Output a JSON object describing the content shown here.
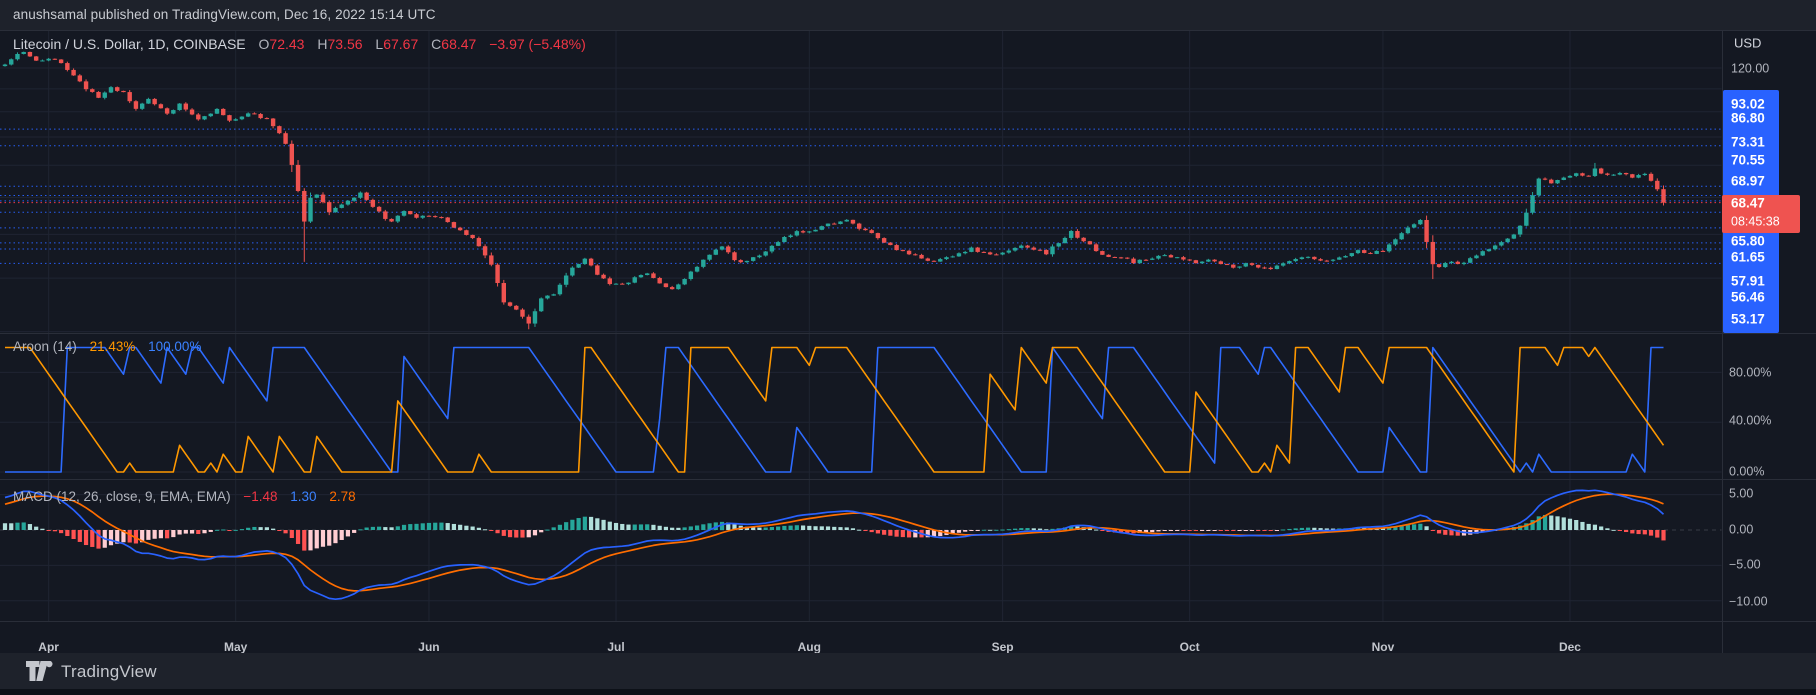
{
  "header": {
    "published_line": "anushsamal published on TradingView.com, Dec 16, 2022 15:14 UTC"
  },
  "watermark": {
    "brand": "TradingView"
  },
  "price_pane": {
    "legend": {
      "title": "Litecoin / U.S. Dollar, 1D, COINBASE",
      "o_label": "O",
      "o_value": "72.43",
      "h_label": "H",
      "h_value": "73.56",
      "l_label": "L",
      "l_value": "67.67",
      "c_label": "C",
      "c_value": "68.47",
      "change": "−3.97 (−5.48%)"
    },
    "axis": {
      "currency": "USD",
      "top_tick": "120.00",
      "level_labels_upper": [
        "93.02",
        "86.80",
        "73.31",
        "70.55",
        "68.97"
      ],
      "level_labels_lower": [
        "65.80",
        "61.65",
        "57.91",
        "56.46",
        "53.17"
      ],
      "current_price": "68.47",
      "countdown": "08:45:38"
    }
  },
  "aroon_pane": {
    "legend": {
      "name": "Aroon (14)",
      "up_value": "21.43%",
      "down_value": "100.00%"
    },
    "axis_ticks": [
      "80.00%",
      "40.00%",
      "0.00%"
    ]
  },
  "macd_pane": {
    "legend": {
      "name": "MACD (12, 26, close, 9, EMA, EMA)",
      "hist_value": "−1.48",
      "macd_value": "1.30",
      "signal_value": "2.78"
    },
    "axis_ticks": [
      "5.00",
      "0.00",
      "−5.00",
      "−10.00"
    ]
  },
  "time_axis": {
    "months": [
      "Apr",
      "May",
      "Jun",
      "Jul",
      "Aug",
      "Sep",
      "Oct",
      "Nov",
      "Dec"
    ],
    "month_start_indices": [
      7,
      37,
      68,
      98,
      129,
      160,
      190,
      221,
      251
    ]
  },
  "chart_data": {
    "type": "candlestick",
    "symbol": "Litecoin / U.S. Dollar",
    "interval": "1D",
    "exchange": "COINBASE",
    "seed": 1337,
    "start_index": -14,
    "end_index": 266,
    "last_candle": {
      "open": 72.43,
      "high": 73.56,
      "low": 67.67,
      "close": 68.47
    },
    "current_price": 68.47,
    "level_lines": [
      93.02,
      86.8,
      73.31,
      70.55,
      68.97,
      65.8,
      61.65,
      57.91,
      56.46,
      53.17
    ],
    "price_grid": [
      120,
      110,
      100,
      90,
      80,
      70,
      60,
      50,
      40
    ],
    "aroon_grid": [
      80,
      40,
      0
    ],
    "macd_grid": [
      5,
      0,
      -5,
      -10
    ],
    "indicators": {
      "aroon_period": 14,
      "macd_fast": 12,
      "macd_slow": 26,
      "macd_signal": 9
    },
    "keypoints": [
      [
        -14,
        104
      ],
      [
        -10,
        112
      ],
      [
        -6,
        118
      ],
      [
        -3,
        121
      ],
      [
        0,
        122
      ],
      [
        3,
        129
      ],
      [
        5,
        124
      ],
      [
        8,
        125
      ],
      [
        11,
        116
      ],
      [
        13,
        110
      ],
      [
        15,
        106
      ],
      [
        17,
        111
      ],
      [
        19,
        108
      ],
      [
        21,
        101
      ],
      [
        23,
        106
      ],
      [
        26,
        99
      ],
      [
        28,
        103
      ],
      [
        31,
        97
      ],
      [
        34,
        101
      ],
      [
        36,
        96
      ],
      [
        39,
        99.5
      ],
      [
        42,
        97
      ],
      [
        44,
        91
      ],
      [
        45,
        88
      ],
      [
        46,
        80
      ],
      [
        47,
        72
      ],
      [
        48,
        63
      ],
      [
        49,
        70
      ],
      [
        50,
        71
      ],
      [
        52,
        66
      ],
      [
        55,
        69
      ],
      [
        57,
        71
      ],
      [
        59,
        67
      ],
      [
        62,
        63
      ],
      [
        64,
        66
      ],
      [
        66,
        64
      ],
      [
        68,
        65
      ],
      [
        70,
        64
      ],
      [
        73,
        61
      ],
      [
        75,
        59
      ],
      [
        78,
        53
      ],
      [
        80,
        45
      ],
      [
        82,
        44
      ],
      [
        84,
        41.5
      ],
      [
        86,
        46
      ],
      [
        88,
        47
      ],
      [
        91,
        52
      ],
      [
        93,
        54
      ],
      [
        95,
        51
      ],
      [
        97,
        49
      ],
      [
        99,
        48.5
      ],
      [
        101,
        50
      ],
      [
        103,
        51
      ],
      [
        105,
        49
      ],
      [
        107,
        47.5
      ],
      [
        109,
        50
      ],
      [
        111,
        52.5
      ],
      [
        113,
        55
      ],
      [
        115,
        57
      ],
      [
        117,
        54
      ],
      [
        119,
        53.5
      ],
      [
        121,
        55
      ],
      [
        123,
        57
      ],
      [
        125,
        59
      ],
      [
        127,
        60.5
      ],
      [
        129,
        61
      ],
      [
        131,
        62
      ],
      [
        133,
        63
      ],
      [
        135,
        63.5
      ],
      [
        137,
        61.5
      ],
      [
        139,
        60
      ],
      [
        141,
        58
      ],
      [
        143,
        56.5
      ],
      [
        145,
        55
      ],
      [
        147,
        54.5
      ],
      [
        149,
        53.5
      ],
      [
        151,
        54.5
      ],
      [
        153,
        55.5
      ],
      [
        155,
        56.5
      ],
      [
        157,
        55.5
      ],
      [
        159,
        55
      ],
      [
        161,
        56
      ],
      [
        163,
        57.5
      ],
      [
        165,
        56.5
      ],
      [
        167,
        55.5
      ],
      [
        169,
        58
      ],
      [
        171,
        60.5
      ],
      [
        173,
        58.5
      ],
      [
        175,
        56
      ],
      [
        177,
        54.5
      ],
      [
        179,
        54.5
      ],
      [
        181,
        53.5
      ],
      [
        183,
        54
      ],
      [
        185,
        55
      ],
      [
        187,
        54.5
      ],
      [
        189,
        54
      ],
      [
        191,
        53.5
      ],
      [
        193,
        54
      ],
      [
        195,
        53
      ],
      [
        197,
        52.5
      ],
      [
        199,
        53
      ],
      [
        201,
        52.5
      ],
      [
        203,
        52
      ],
      [
        205,
        53
      ],
      [
        207,
        54
      ],
      [
        209,
        54.5
      ],
      [
        211,
        53.5
      ],
      [
        213,
        54
      ],
      [
        215,
        55
      ],
      [
        217,
        56
      ],
      [
        219,
        55.5
      ],
      [
        221,
        56
      ],
      [
        223,
        59
      ],
      [
        225,
        62
      ],
      [
        227,
        63.5
      ],
      [
        228,
        58
      ],
      [
        229,
        53
      ],
      [
        230,
        52.5
      ],
      [
        232,
        53.5
      ],
      [
        234,
        53
      ],
      [
        236,
        55
      ],
      [
        238,
        56.5
      ],
      [
        240,
        58
      ],
      [
        242,
        60
      ],
      [
        243,
        62
      ],
      [
        244,
        66
      ],
      [
        245,
        71
      ],
      [
        246,
        76
      ],
      [
        247,
        75
      ],
      [
        248,
        74.5
      ],
      [
        250,
        76
      ],
      [
        252,
        77
      ],
      [
        254,
        76.5
      ],
      [
        255,
        78.5
      ],
      [
        256,
        77.5
      ],
      [
        257,
        76.5
      ],
      [
        259,
        77.5
      ],
      [
        261,
        76
      ],
      [
        263,
        77.2
      ],
      [
        264,
        75
      ],
      [
        265,
        72.4
      ],
      [
        266,
        68.47
      ]
    ],
    "wick_overrides": [
      {
        "i": 48,
        "low": 53.5
      },
      {
        "i": 84,
        "low": 40.4
      },
      {
        "i": 229,
        "low": 49.8
      },
      {
        "i": 255,
        "high": 80.8
      }
    ],
    "colors": {
      "up": "#26a69a",
      "down": "#ef5350",
      "level_line": "#2962ff",
      "current_line": "#f23645",
      "label_blue_bg": "#2962ff",
      "label_red_bg": "#ef5350",
      "aroon_up": "#ff9800",
      "aroon_down": "#2d6bff",
      "macd_line": "#2962ff",
      "macd_signal": "#ff6d00",
      "hist_pos_rise": "#26a69a",
      "hist_pos_fall": "#b2dfdb",
      "hist_neg_rise": "#ffcdd2",
      "hist_neg_fall": "#ff5252",
      "grid": "#1f2432",
      "pane_border": "#2a2e39",
      "axis_text": "#b2b5be",
      "month_text": "#c2c5cc"
    }
  }
}
